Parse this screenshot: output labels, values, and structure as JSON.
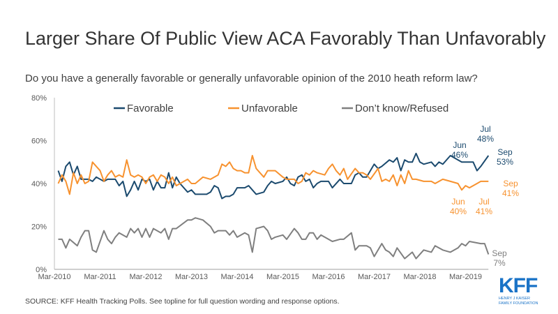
{
  "title": "Larger Share Of Public View ACA Favorably Than Unfavorably",
  "subtitle": "Do you have a generally favorable or generally unfavorable opinion of the 2010 heath reform law?",
  "source": "SOURCE: KFF Health Tracking Polls. See topline for full question wording and response options.",
  "logo": {
    "text": "KFF",
    "line1": "HENRY J KAISER",
    "line2": "FAMILY FOUNDATION"
  },
  "chart_data": {
    "type": "line",
    "title": "",
    "xlabel": "",
    "ylabel": "",
    "ylim": [
      0,
      80
    ],
    "yticks": [
      "0%",
      "20%",
      "40%",
      "60%",
      "80%"
    ],
    "ytick_values": [
      0,
      20,
      40,
      60,
      80
    ],
    "xticks": [
      "Mar-2010",
      "Mar-2011",
      "Mar-2012",
      "Mar-2013",
      "Mar-2014",
      "Mar-2015",
      "Mar-2016",
      "Mar-2017",
      "Mar-2018",
      "Mar-2019"
    ],
    "xtick_dates": [
      "2010-03",
      "2011-03",
      "2012-03",
      "2013-03",
      "2014-03",
      "2015-03",
      "2016-03",
      "2017-03",
      "2018-03",
      "2019-03"
    ],
    "xlim": [
      "2010-03",
      "2019-09"
    ],
    "grid": false,
    "legend_position": "top",
    "series": [
      {
        "name": "Favorable",
        "color": "#1b4a6e",
        "points": [
          [
            "2010-04",
            46
          ],
          [
            "2010-05",
            41
          ],
          [
            "2010-06",
            48
          ],
          [
            "2010-07",
            50
          ],
          [
            "2010-08",
            44
          ],
          [
            "2010-09",
            48
          ],
          [
            "2010-10",
            42
          ],
          [
            "2010-12",
            42
          ],
          [
            "2011-01",
            41
          ],
          [
            "2011-02",
            43
          ],
          [
            "2011-04",
            41
          ],
          [
            "2011-05",
            42
          ],
          [
            "2011-07",
            42
          ],
          [
            "2011-08",
            39
          ],
          [
            "2011-09",
            41
          ],
          [
            "2011-10",
            34
          ],
          [
            "2011-11",
            37
          ],
          [
            "2011-12",
            41
          ],
          [
            "2012-01",
            37
          ],
          [
            "2012-02",
            42
          ],
          [
            "2012-03",
            41
          ],
          [
            "2012-04",
            42
          ],
          [
            "2012-05",
            37
          ],
          [
            "2012-06",
            41
          ],
          [
            "2012-07",
            38
          ],
          [
            "2012-08",
            38
          ],
          [
            "2012-09",
            45
          ],
          [
            "2012-10",
            38
          ],
          [
            "2012-11",
            43
          ],
          [
            "2012-12",
            40
          ],
          [
            "2013-02",
            36
          ],
          [
            "2013-03",
            37
          ],
          [
            "2013-04",
            35
          ],
          [
            "2013-06",
            35
          ],
          [
            "2013-07",
            35
          ],
          [
            "2013-08",
            36
          ],
          [
            "2013-09",
            39
          ],
          [
            "2013-10",
            38
          ],
          [
            "2013-11",
            33
          ],
          [
            "2013-12",
            34
          ],
          [
            "2014-01",
            34
          ],
          [
            "2014-02",
            35
          ],
          [
            "2014-03",
            38
          ],
          [
            "2014-05",
            38
          ],
          [
            "2014-06",
            39
          ],
          [
            "2014-08",
            35
          ],
          [
            "2014-10",
            36
          ],
          [
            "2014-11",
            39
          ],
          [
            "2014-12",
            41
          ],
          [
            "2015-01",
            40
          ],
          [
            "2015-03",
            41
          ],
          [
            "2015-04",
            43
          ],
          [
            "2015-05",
            40
          ],
          [
            "2015-06",
            39
          ],
          [
            "2015-07",
            43
          ],
          [
            "2015-08",
            44
          ],
          [
            "2015-09",
            41
          ],
          [
            "2015-10",
            42
          ],
          [
            "2015-11",
            38
          ],
          [
            "2015-12",
            40
          ],
          [
            "2016-01",
            41
          ],
          [
            "2016-03",
            41
          ],
          [
            "2016-04",
            38
          ],
          [
            "2016-06",
            42
          ],
          [
            "2016-07",
            40
          ],
          [
            "2016-09",
            40
          ],
          [
            "2016-10",
            44
          ],
          [
            "2016-11",
            45
          ],
          [
            "2016-12",
            43
          ],
          [
            "2017-01",
            43
          ],
          [
            "2017-02",
            46
          ],
          [
            "2017-03",
            49
          ],
          [
            "2017-04",
            47
          ],
          [
            "2017-05",
            48
          ],
          [
            "2017-07",
            51
          ],
          [
            "2017-08",
            50
          ],
          [
            "2017-09",
            52
          ],
          [
            "2017-10",
            46
          ],
          [
            "2017-11",
            51
          ],
          [
            "2017-12",
            50
          ],
          [
            "2018-01",
            50
          ],
          [
            "2018-02",
            54
          ],
          [
            "2018-03",
            50
          ],
          [
            "2018-04",
            49
          ],
          [
            "2018-06",
            50
          ],
          [
            "2018-07",
            48
          ],
          [
            "2018-08",
            50
          ],
          [
            "2018-09",
            49
          ],
          [
            "2018-11",
            53
          ],
          [
            "2019-02",
            50
          ],
          [
            "2019-04",
            50
          ],
          [
            "2019-05",
            50
          ],
          [
            "2019-06",
            46
          ],
          [
            "2019-07",
            48
          ],
          [
            "2019-09",
            53
          ]
        ]
      },
      {
        "name": "Unfavorable",
        "color": "#f7922f",
        "points": [
          [
            "2010-04",
            40
          ],
          [
            "2010-05",
            44
          ],
          [
            "2010-06",
            41
          ],
          [
            "2010-07",
            35
          ],
          [
            "2010-08",
            45
          ],
          [
            "2010-09",
            40
          ],
          [
            "2010-10",
            44
          ],
          [
            "2010-11",
            40
          ],
          [
            "2010-12",
            41
          ],
          [
            "2011-01",
            50
          ],
          [
            "2011-02",
            48
          ],
          [
            "2011-03",
            46
          ],
          [
            "2011-04",
            41
          ],
          [
            "2011-05",
            44
          ],
          [
            "2011-06",
            46
          ],
          [
            "2011-07",
            43
          ],
          [
            "2011-08",
            44
          ],
          [
            "2011-09",
            43
          ],
          [
            "2011-10",
            51
          ],
          [
            "2011-11",
            44
          ],
          [
            "2011-12",
            43
          ],
          [
            "2012-01",
            44
          ],
          [
            "2012-02",
            43
          ],
          [
            "2012-03",
            40
          ],
          [
            "2012-04",
            43
          ],
          [
            "2012-05",
            44
          ],
          [
            "2012-06",
            41
          ],
          [
            "2012-07",
            44
          ],
          [
            "2012-08",
            43
          ],
          [
            "2012-09",
            40
          ],
          [
            "2012-10",
            43
          ],
          [
            "2012-11",
            39
          ],
          [
            "2013-02",
            42
          ],
          [
            "2013-03",
            40
          ],
          [
            "2013-04",
            40
          ],
          [
            "2013-06",
            43
          ],
          [
            "2013-08",
            42
          ],
          [
            "2013-10",
            44
          ],
          [
            "2013-11",
            49
          ],
          [
            "2013-12",
            48
          ],
          [
            "2014-01",
            50
          ],
          [
            "2014-02",
            47
          ],
          [
            "2014-03",
            46
          ],
          [
            "2014-04",
            46
          ],
          [
            "2014-05",
            45
          ],
          [
            "2014-06",
            45
          ],
          [
            "2014-07",
            53
          ],
          [
            "2014-08",
            47
          ],
          [
            "2014-10",
            43
          ],
          [
            "2014-11",
            46
          ],
          [
            "2015-01",
            46
          ],
          [
            "2015-03",
            43
          ],
          [
            "2015-04",
            42
          ],
          [
            "2015-06",
            42
          ],
          [
            "2015-07",
            40
          ],
          [
            "2015-08",
            41
          ],
          [
            "2015-09",
            45
          ],
          [
            "2015-10",
            44
          ],
          [
            "2015-11",
            46
          ],
          [
            "2015-12",
            45
          ],
          [
            "2016-02",
            44
          ],
          [
            "2016-03",
            47
          ],
          [
            "2016-04",
            49
          ],
          [
            "2016-05",
            46
          ],
          [
            "2016-06",
            44
          ],
          [
            "2016-07",
            47
          ],
          [
            "2016-08",
            42
          ],
          [
            "2016-10",
            47
          ],
          [
            "2016-11",
            45
          ],
          [
            "2016-12",
            45
          ],
          [
            "2017-01",
            44
          ],
          [
            "2017-02",
            42
          ],
          [
            "2017-04",
            47
          ],
          [
            "2017-05",
            41
          ],
          [
            "2017-06",
            42
          ],
          [
            "2017-07",
            41
          ],
          [
            "2017-08",
            44
          ],
          [
            "2017-09",
            39
          ],
          [
            "2017-10",
            44
          ],
          [
            "2017-11",
            40
          ],
          [
            "2017-12",
            46
          ],
          [
            "2018-01",
            42
          ],
          [
            "2018-02",
            42
          ],
          [
            "2018-04",
            41
          ],
          [
            "2018-06",
            41
          ],
          [
            "2018-07",
            40
          ],
          [
            "2018-09",
            42
          ],
          [
            "2018-11",
            41
          ],
          [
            "2019-01",
            40
          ],
          [
            "2019-02",
            37
          ],
          [
            "2019-03",
            39
          ],
          [
            "2019-04",
            38
          ],
          [
            "2019-06",
            40
          ],
          [
            "2019-07",
            41
          ],
          [
            "2019-09",
            41
          ]
        ]
      },
      {
        "name": "Don’t know/Refused",
        "color": "#7f7f7f",
        "points": [
          [
            "2010-04",
            14
          ],
          [
            "2010-05",
            14
          ],
          [
            "2010-06",
            10
          ],
          [
            "2010-07",
            14
          ],
          [
            "2010-09",
            11
          ],
          [
            "2010-10",
            15
          ],
          [
            "2010-11",
            18
          ],
          [
            "2010-12",
            18
          ],
          [
            "2011-01",
            9
          ],
          [
            "2011-02",
            8
          ],
          [
            "2011-04",
            18
          ],
          [
            "2011-05",
            14
          ],
          [
            "2011-06",
            12
          ],
          [
            "2011-07",
            15
          ],
          [
            "2011-08",
            17
          ],
          [
            "2011-10",
            15
          ],
          [
            "2011-11",
            19
          ],
          [
            "2011-12",
            17
          ],
          [
            "2012-01",
            19
          ],
          [
            "2012-02",
            15
          ],
          [
            "2012-03",
            19
          ],
          [
            "2012-04",
            15
          ],
          [
            "2012-05",
            19
          ],
          [
            "2012-07",
            17
          ],
          [
            "2012-08",
            19
          ],
          [
            "2012-09",
            14
          ],
          [
            "2012-10",
            19
          ],
          [
            "2012-11",
            19
          ],
          [
            "2013-02",
            23
          ],
          [
            "2013-03",
            23
          ],
          [
            "2013-04",
            24
          ],
          [
            "2013-06",
            23
          ],
          [
            "2013-08",
            20
          ],
          [
            "2013-09",
            17
          ],
          [
            "2013-10",
            18
          ],
          [
            "2013-12",
            18
          ],
          [
            "2014-01",
            16
          ],
          [
            "2014-02",
            18
          ],
          [
            "2014-03",
            15
          ],
          [
            "2014-05",
            17
          ],
          [
            "2014-06",
            16
          ],
          [
            "2014-07",
            8
          ],
          [
            "2014-08",
            19
          ],
          [
            "2014-10",
            20
          ],
          [
            "2014-11",
            18
          ],
          [
            "2014-12",
            14
          ],
          [
            "2015-01",
            15
          ],
          [
            "2015-03",
            16
          ],
          [
            "2015-04",
            14
          ],
          [
            "2015-06",
            19
          ],
          [
            "2015-07",
            17
          ],
          [
            "2015-08",
            14
          ],
          [
            "2015-09",
            14
          ],
          [
            "2015-10",
            17
          ],
          [
            "2015-11",
            17
          ],
          [
            "2015-12",
            14
          ],
          [
            "2016-01",
            16
          ],
          [
            "2016-03",
            14
          ],
          [
            "2016-04",
            13
          ],
          [
            "2016-06",
            14
          ],
          [
            "2016-07",
            14
          ],
          [
            "2016-09",
            17
          ],
          [
            "2016-10",
            9
          ],
          [
            "2016-11",
            11
          ],
          [
            "2017-01",
            11
          ],
          [
            "2017-02",
            10
          ],
          [
            "2017-03",
            6
          ],
          [
            "2017-05",
            12
          ],
          [
            "2017-06",
            9
          ],
          [
            "2017-07",
            8
          ],
          [
            "2017-08",
            6
          ],
          [
            "2017-09",
            10
          ],
          [
            "2017-11",
            5
          ],
          [
            "2018-01",
            8
          ],
          [
            "2018-02",
            5
          ],
          [
            "2018-04",
            9
          ],
          [
            "2018-06",
            8
          ],
          [
            "2018-07",
            11
          ],
          [
            "2018-09",
            9
          ],
          [
            "2018-11",
            8
          ],
          [
            "2019-01",
            10
          ],
          [
            "2019-02",
            12
          ],
          [
            "2019-03",
            11
          ],
          [
            "2019-04",
            13
          ],
          [
            "2019-07",
            12
          ],
          [
            "2019-08",
            12
          ],
          [
            "2019-09",
            7
          ]
        ]
      }
    ],
    "annotations": [
      {
        "series": "Favorable",
        "month": "Jun",
        "value": "46%"
      },
      {
        "series": "Favorable",
        "month": "Jul",
        "value": "48%"
      },
      {
        "series": "Favorable",
        "month": "Sep",
        "value": "53%"
      },
      {
        "series": "Unfavorable",
        "month": "Jun",
        "value": "40%"
      },
      {
        "series": "Unfavorable",
        "month": "Jul",
        "value": "41%"
      },
      {
        "series": "Unfavorable",
        "month": "Sep",
        "value": "41%"
      },
      {
        "series": "Don’t know/Refused",
        "month": "Sep",
        "value": "7%"
      }
    ]
  }
}
